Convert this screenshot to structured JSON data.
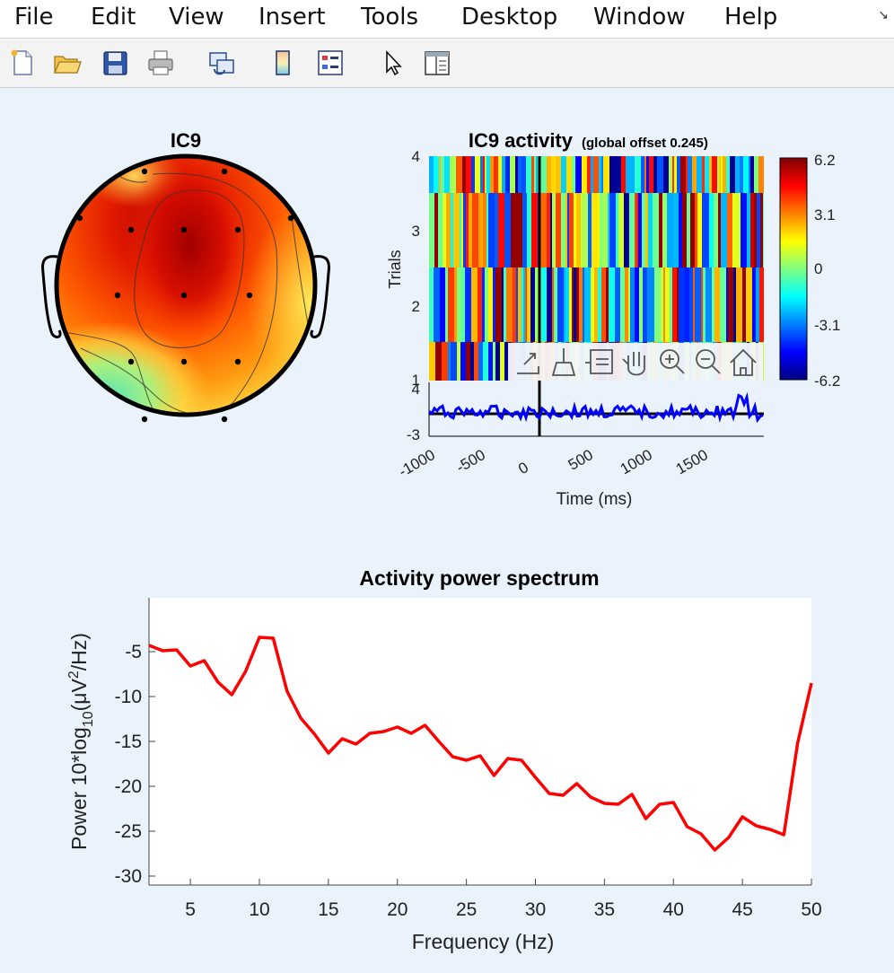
{
  "menu": [
    "File",
    "Edit",
    "View",
    "Insert",
    "Tools",
    "Desktop",
    "Window",
    "Help"
  ],
  "menu_overflow_icon": "corner-arrow-icon",
  "toolbar": [
    {
      "name": "new-figure-button",
      "icon": "new-file-icon"
    },
    {
      "name": "open-file-button",
      "icon": "folder-open-icon"
    },
    {
      "name": "save-button",
      "icon": "floppy-disk-icon"
    },
    {
      "name": "print-button",
      "icon": "printer-icon"
    },
    {
      "name": "link-plot-button",
      "icon": "linked-windows-icon"
    },
    {
      "name": "insert-colorbar-button",
      "icon": "colorbar-icon"
    },
    {
      "name": "insert-legend-button",
      "icon": "legend-icon"
    },
    {
      "name": "edit-plot-button",
      "icon": "pointer-arrow-icon"
    },
    {
      "name": "property-inspector-button",
      "icon": "panel-icon"
    }
  ],
  "topo": {
    "title": "IC9"
  },
  "erp": {
    "title": "IC9 activity",
    "subtitle": "(global offset 0.245)",
    "ylabel": "Trials",
    "trial_ticks": [
      "4",
      "3",
      "2",
      "1"
    ],
    "trace_ticks": [
      "4",
      "-3"
    ],
    "xticks": [
      "-1000",
      "-500",
      "0",
      "500",
      "1000",
      "1500"
    ],
    "xlabel": "Time (ms)",
    "colorbar_ticks": [
      "6.2",
      "3.1",
      "0",
      "-3.1",
      "-6.2"
    ]
  },
  "axes_toolbar": [
    "export-icon",
    "brush-icon",
    "data-tips-icon",
    "pan-hand-icon",
    "zoom-in-icon",
    "zoom-out-icon",
    "home-icon"
  ],
  "chart_data": {
    "type": "line",
    "title": "Activity power spectrum",
    "xlabel": "Frequency (Hz)",
    "ylabel_prefix": "Power 10*log",
    "ylabel_sub": "10",
    "ylabel_mid": "(μV",
    "ylabel_sup": "2",
    "ylabel_suffix": "/Hz)",
    "xlim": [
      2,
      50
    ],
    "ylim": [
      -31,
      1
    ],
    "xticks": [
      5,
      10,
      15,
      20,
      25,
      30,
      35,
      40,
      45,
      50
    ],
    "yticks": [
      -5,
      -10,
      -15,
      -20,
      -25,
      -30
    ],
    "color": "#ff0000",
    "x": [
      2,
      3,
      4,
      5,
      6,
      7,
      8,
      9,
      10,
      11,
      12,
      13,
      14,
      15,
      16,
      17,
      18,
      19,
      20,
      21,
      22,
      23,
      24,
      25,
      26,
      27,
      28,
      29,
      30,
      31,
      32,
      33,
      34,
      35,
      36,
      37,
      38,
      39,
      40,
      41,
      42,
      43,
      44,
      45,
      46,
      47,
      48,
      49,
      50
    ],
    "y": [
      -4.3,
      -4.9,
      -4.8,
      -6.6,
      -6.0,
      -8.4,
      -9.8,
      -7.2,
      -3.4,
      -3.5,
      -9.4,
      -12.4,
      -14.2,
      -16.3,
      -14.7,
      -15.3,
      -14.1,
      -13.9,
      -13.4,
      -14.1,
      -13.2,
      -15.0,
      -16.7,
      -17.1,
      -16.6,
      -18.8,
      -16.9,
      -17.1,
      -19.0,
      -20.8,
      -21.0,
      -19.7,
      -21.2,
      -21.9,
      -22.0,
      -20.9,
      -23.6,
      -22.0,
      -21.8,
      -24.5,
      -25.3,
      -27.1,
      -25.7,
      -23.4,
      -24.4,
      -24.8,
      -25.4,
      -15.2,
      -8.5
    ]
  },
  "colors": {
    "trace": "#0000ff",
    "spectrum": "#ff0000",
    "figure_bg": "#eaf2fb"
  }
}
